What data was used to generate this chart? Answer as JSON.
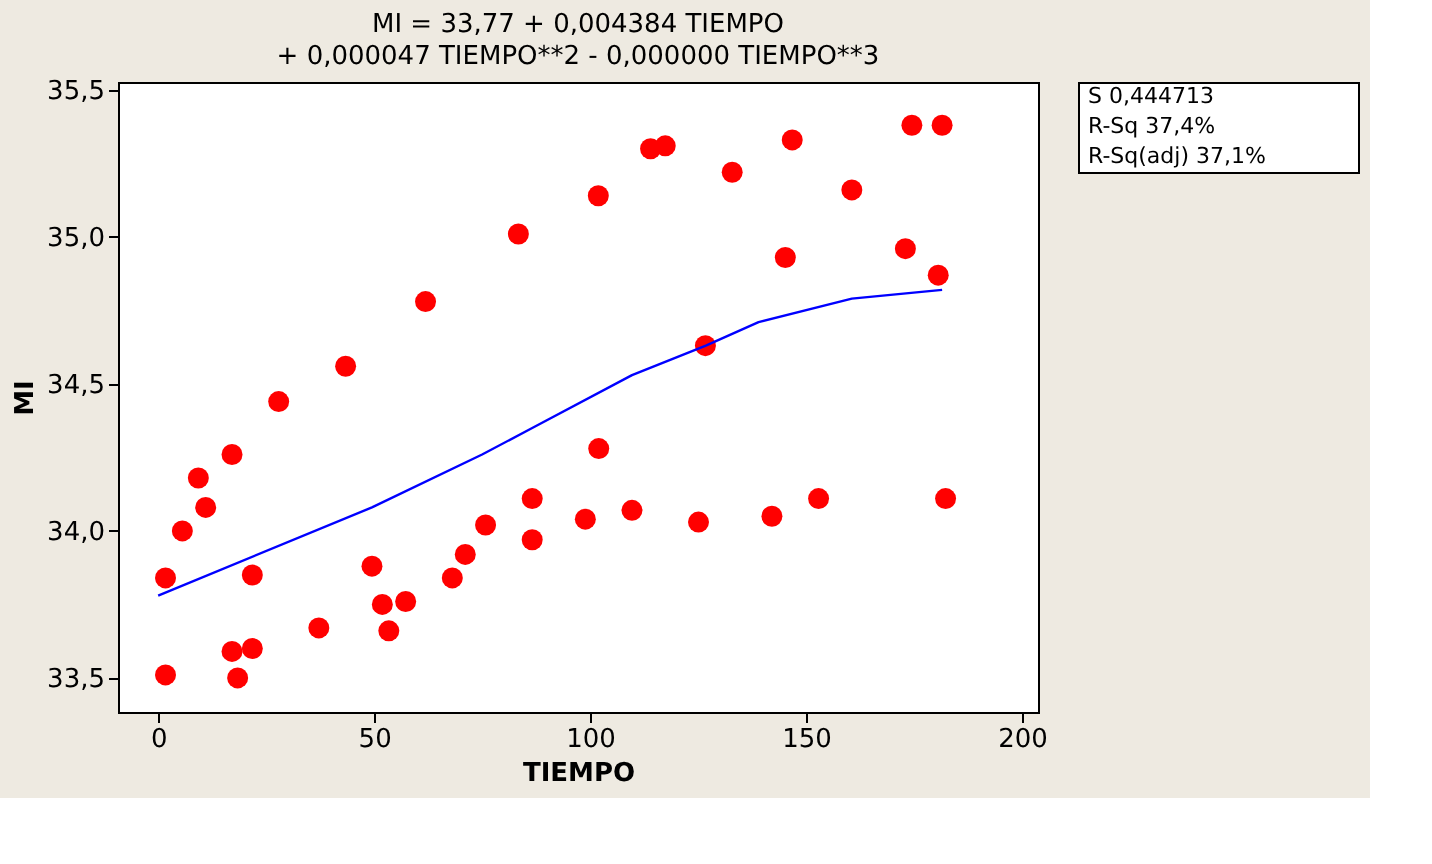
{
  "chart_data": {
    "type": "scatter",
    "title": "MI =  33,77 + 0,004384 TIEMPO",
    "subtitle": "+ 0,000047 TIEMPO**2 - 0,000000 TIEMPO**3",
    "xlabel": "TIEMPO",
    "ylabel": "MI",
    "xlim": [
      -9.3,
      203.7
    ],
    "ylim": [
      33.384,
      35.527
    ],
    "xticks": [
      0,
      50,
      100,
      150,
      200
    ],
    "yticks": [
      {
        "value": 33.5,
        "label": "33,5"
      },
      {
        "value": 34.0,
        "label": "34,0"
      },
      {
        "value": 34.5,
        "label": "34,5"
      },
      {
        "value": 35.0,
        "label": "35,0"
      },
      {
        "value": 35.5,
        "label": "35,5"
      }
    ],
    "grid": false,
    "legend": false,
    "annotations": [
      "S            0,444713",
      "R-Sq             37,4%",
      "R-Sq(adj)        37,1%"
    ],
    "series": [
      {
        "marker": "circle",
        "color": "#ff0000",
        "x": [
          1.7,
          5.6,
          9.3,
          11,
          17.1,
          27.9,
          43.4,
          61.9,
          83.4,
          101.9,
          114,
          117.4,
          132.9,
          146.8,
          173,
          180.6,
          21.8,
          49.5,
          71.1,
          86.6,
          98.9,
          109.7,
          125.1,
          142.1,
          152.9,
          182.3,
          1.7,
          17.1,
          18.4,
          21.8,
          37.2,
          51.9,
          53.4,
          57.3,
          68.1,
          75.8,
          86.6,
          102,
          126.7,
          145.2,
          160.6,
          174.5,
          181.5
        ],
        "values": [
          33.84,
          34.0,
          34.18,
          34.08,
          34.26,
          34.44,
          34.56,
          34.78,
          35.01,
          35.14,
          35.3,
          35.31,
          35.22,
          35.33,
          34.96,
          34.87,
          33.85,
          33.88,
          33.92,
          33.97,
          34.04,
          34.07,
          34.03,
          34.05,
          34.11,
          34.11,
          33.51,
          33.59,
          33.5,
          33.6,
          33.67,
          33.75,
          33.66,
          33.76,
          33.84,
          34.02,
          34.11,
          34.28,
          34.63,
          34.93,
          35.16,
          35.38,
          35.38
        ]
      },
      {
        "type": "line",
        "marker": "none",
        "color": "#0000ff",
        "x": [
          0,
          49.5,
          75,
          86.6,
          109.7,
          126.8,
          139,
          160.6,
          181.5
        ],
        "values": [
          33.78,
          34.08,
          34.26,
          34.35,
          34.53,
          34.63,
          34.71,
          34.79,
          34.82
        ]
      }
    ]
  }
}
